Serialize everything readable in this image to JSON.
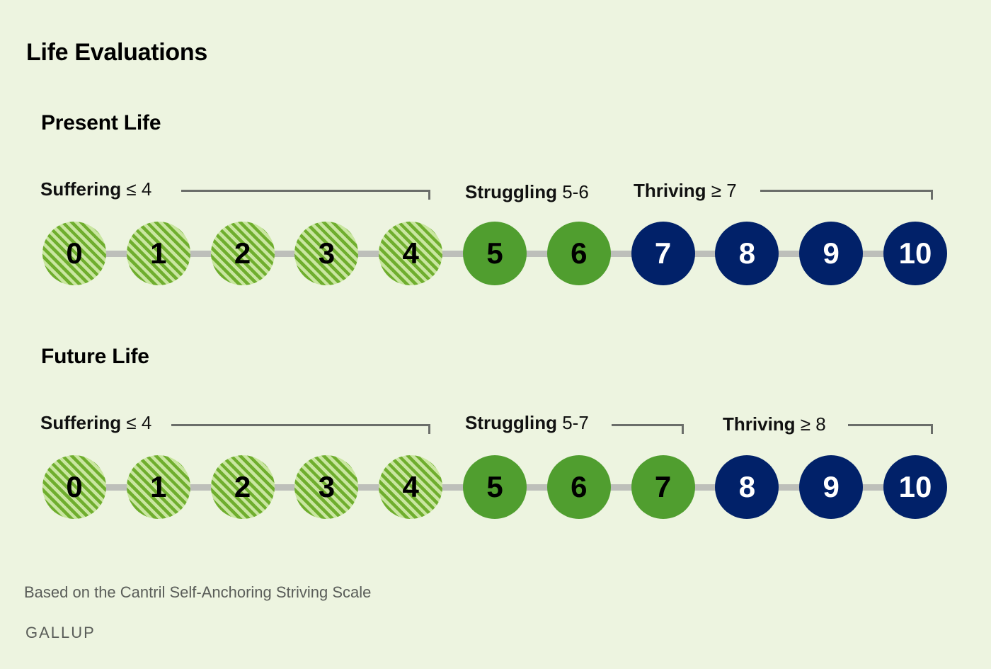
{
  "title": "Life Evaluations",
  "sections": [
    {
      "heading": "Present Life",
      "groups": [
        {
          "name": "Suffering",
          "range": "≤ 4",
          "tier": "suffering"
        },
        {
          "name": "Struggling",
          "range": "5-6",
          "tier": "struggling"
        },
        {
          "name": "Thriving",
          "range": "≥ 7",
          "tier": "thriving"
        }
      ],
      "circles": [
        {
          "label": "0",
          "tier": "suffering"
        },
        {
          "label": "1",
          "tier": "suffering"
        },
        {
          "label": "2",
          "tier": "suffering"
        },
        {
          "label": "3",
          "tier": "suffering"
        },
        {
          "label": "4",
          "tier": "suffering"
        },
        {
          "label": "5",
          "tier": "struggling"
        },
        {
          "label": "6",
          "tier": "struggling"
        },
        {
          "label": "7",
          "tier": "thriving"
        },
        {
          "label": "8",
          "tier": "thriving"
        },
        {
          "label": "9",
          "tier": "thriving"
        },
        {
          "label": "10",
          "tier": "thriving"
        }
      ]
    },
    {
      "heading": "Future Life",
      "groups": [
        {
          "name": "Suffering",
          "range": "≤ 4",
          "tier": "suffering"
        },
        {
          "name": "Struggling",
          "range": "5-7",
          "tier": "struggling"
        },
        {
          "name": "Thriving",
          "range": "≥ 8",
          "tier": "thriving"
        }
      ],
      "circles": [
        {
          "label": "0",
          "tier": "suffering"
        },
        {
          "label": "1",
          "tier": "suffering"
        },
        {
          "label": "2",
          "tier": "suffering"
        },
        {
          "label": "3",
          "tier": "suffering"
        },
        {
          "label": "4",
          "tier": "suffering"
        },
        {
          "label": "5",
          "tier": "struggling"
        },
        {
          "label": "6",
          "tier": "struggling"
        },
        {
          "label": "7",
          "tier": "struggling"
        },
        {
          "label": "8",
          "tier": "thriving"
        },
        {
          "label": "9",
          "tier": "thriving"
        },
        {
          "label": "10",
          "tier": "thriving"
        }
      ]
    }
  ],
  "footnote": "Based on the Cantril Self-Anchoring Striving Scale",
  "logo": "GALLUP",
  "colors": {
    "background": "#edf4e0",
    "suffering_stripe_dark": "#6fae2e",
    "suffering_stripe_light": "#c9e6a0",
    "struggling": "#509e2f",
    "thriving": "#012169",
    "connector": "#bdbfba",
    "bracket": "#6b6e6a"
  }
}
